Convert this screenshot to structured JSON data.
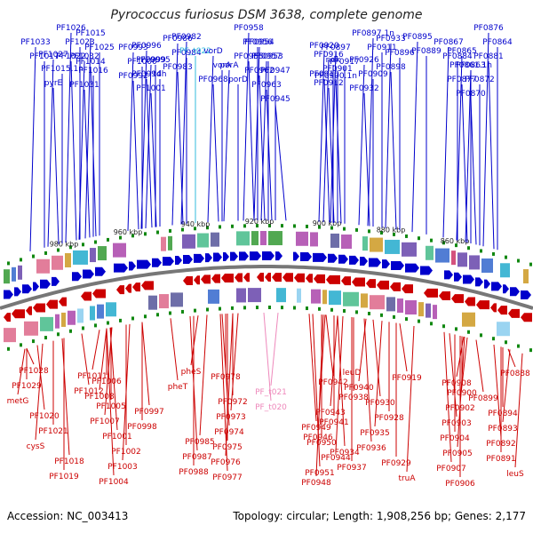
{
  "title": "Pyrococcus furiosus DSM 3638, complete genome",
  "footer": {
    "accession": "Accession: NC_003413",
    "summary": "Topology: circular; Length: 1,908,256 bp; Genes: 2,177"
  },
  "colors": {
    "forward": "#0000cc",
    "reverse": "#cc0000",
    "trna_forward": "#33bbdd",
    "trna_reverse": "#ee88bb",
    "backbone": "#777777",
    "tick_mark": "#118811"
  },
  "ruler": [
    "980 kbp",
    "960 kbp",
    "940 kbp",
    "920 kbp",
    "900 kbp",
    "880 kbp",
    "860 kbp"
  ],
  "top_labels": [
    "PF1026",
    "PF1023",
    "PF1022",
    "PF1033",
    "PF1017",
    "PF1032",
    "PF1016",
    "PF1031",
    "PF1027",
    "PF1015.1n",
    "pyrE",
    "PF1015",
    "PF1025",
    "PF1014",
    "PF0993",
    "PF1000",
    "PF0992",
    "PF0996",
    "PF0995",
    "PF0994",
    "PF0999",
    "tdh",
    "PF1001",
    "PF0986",
    "PF0984",
    "PF0983",
    "PF0982",
    "PF_t022",
    "vorD",
    "vorA",
    "PF0968",
    "porA",
    "porD",
    "PF0958",
    "PF0956",
    "PF0955",
    "PF0954",
    "PF0953",
    "PF0962",
    "PF0957",
    "PF0947",
    "PF0963",
    "PF0945",
    "PF0916",
    "PF0901",
    "PF0912",
    "PF0897.1n",
    "PF0911",
    "PF0897",
    "PF0917",
    "PF0900.1n",
    "PF0920",
    "ndk",
    "PF0910",
    "PF0926",
    "PF0909",
    "PF0932",
    "PF0933",
    "PF0896",
    "PF0898",
    "PF0895",
    "PF0889",
    "PF0865",
    "PF0863",
    "PF0877",
    "PF0861.1n",
    "PF0872",
    "PF0870",
    "PF0876",
    "PF0864",
    "PF0881",
    "PF0867",
    "PF0884"
  ],
  "bottom_labels": [
    "PF1028",
    "PF1029",
    "metG",
    "PF1020",
    "PF1021",
    "cysS",
    "PF1018",
    "PF1019",
    "PF1011",
    "PF1012",
    "PF1005",
    "PF1007",
    "PF1001",
    "PF1002",
    "PF1003",
    "PF1004",
    "PF1006",
    "PF1008",
    "PF0997",
    "PF0998",
    "PF0985",
    "PF0987",
    "PF0988",
    "pheS",
    "pheT",
    "PF0972",
    "PF0973",
    "PF0974",
    "PF0975",
    "PF0976",
    "PF0977",
    "PF0978",
    "PF_t021",
    "PF_t020",
    "PF0941",
    "PF0946",
    "PF0934",
    "PF0937",
    "PF0948",
    "PF0942",
    "PF0938",
    "PF0943",
    "PF0949",
    "PF0950",
    "PF0944",
    "PF0951",
    "leuD",
    "PF0940",
    "PF0930",
    "PF0928",
    "PF0935",
    "PF0936",
    "PF0929",
    "truA",
    "PF0919",
    "PF0900",
    "PF0902",
    "PF0903",
    "PF0904",
    "PF0905",
    "PF0907",
    "PF0906",
    "PF0908",
    "PF0899",
    "PF0894",
    "PF0893",
    "PF0892",
    "PF0891",
    "leuS",
    "PF0888"
  ]
}
